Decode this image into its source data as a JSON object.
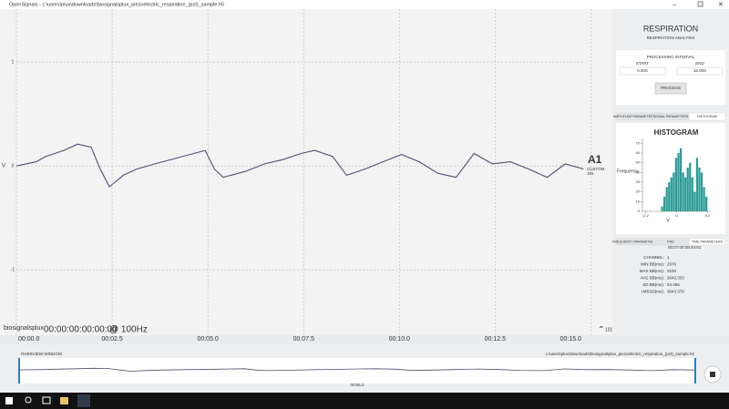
{
  "window": {
    "title": "OpenSignals - c:\\users\\plux\\downloads\\biosignalsplux_piezoelectric_respiration_(pzt)_sample.h5"
  },
  "signal_plot": {
    "type": "line",
    "y_label": "V",
    "color": "#4d5170",
    "x": [
      0,
      0.52,
      0.76,
      1.24,
      1.6,
      1.95,
      2.19,
      2.43,
      2.79,
      3.14,
      3.62,
      4.33,
      4.93,
      5.17,
      5.4,
      6.0,
      6.48,
      6.95,
      7.43,
      7.79,
      8.26,
      8.62,
      9.1,
      9.57,
      10.05,
      10.52,
      11.0,
      11.48,
      11.95,
      12.43,
      12.9,
      13.38,
      13.86,
      14.33,
      14.81
    ],
    "values": [
      0,
      0.04,
      0.09,
      0.15,
      0.21,
      0.18,
      -0.03,
      -0.2,
      -0.09,
      -0.03,
      0.02,
      0.09,
      0.15,
      -0.03,
      -0.11,
      -0.05,
      0.02,
      0.06,
      0.12,
      0.15,
      0.09,
      -0.09,
      -0.03,
      0.04,
      0.11,
      0.04,
      -0.07,
      -0.11,
      0.12,
      0.02,
      0.04,
      -0.03,
      -0.11,
      0.02,
      -0.03
    ],
    "xlim": [
      0,
      14.8
    ],
    "ylim": [
      -1.63,
      1.51
    ],
    "yticks": [
      -1,
      0,
      1
    ],
    "xticks": [
      {
        "value": 0,
        "label": "00:00.0"
      },
      {
        "value": 2.5,
        "label": "00:02.5"
      },
      {
        "value": 5,
        "label": "00:05.0"
      },
      {
        "value": 7.5,
        "label": "00:07.5"
      },
      {
        "value": 10,
        "label": "00:10.0"
      },
      {
        "value": 12.5,
        "label": "00:12.5"
      },
      {
        "value": 15,
        "label": "00:15.0"
      }
    ],
    "grid": true
  },
  "channel": {
    "name": "A1",
    "mode": "CUSTOM",
    "resolution": "195"
  },
  "footer": {
    "logo": "biosignalsplux",
    "time": "00:00:00:00:00:00",
    "rate": "@ 100Hz",
    "zoom": "101"
  },
  "overview": {
    "label": "OVERVIEW WINDOW",
    "file": "c:\\users\\plux\\downloads\\biosignalsplux_piezoelectric_respiration_(pzt)_sample.h5",
    "time": "00:05.0"
  },
  "sidebar": {
    "title": "RESPIRATION",
    "subtitle": "RESPIRATION ANALYSIS",
    "interval": {
      "title": "PROCESSING INTERVAL",
      "start_label": "START",
      "end_label": "END",
      "start": "0.00S",
      "end": "15.00S",
      "button": "PROCESS"
    },
    "tabs_top": [
      "AMPLITUDE PARAMETERS",
      "SIGNAL PARAMETERS",
      "HISTOGRAM"
    ],
    "tabs_bottom": [
      "FREQUENCY PARAMETERS",
      "PSD",
      "TIME PARAMETERS"
    ],
    "time_header": "00:07:00:38:40:61",
    "params": [
      [
        "CHANNEL:",
        "1"
      ],
      [
        "MIN BB(ms):",
        "2970"
      ],
      [
        "MAX BB(ms):",
        "3100"
      ],
      [
        "AVG BB(ms):",
        "3043.333"
      ],
      [
        "SD BB(ms):",
        "54.365"
      ],
      [
        "rMSSD(ms):",
        "3043.378"
      ]
    ]
  },
  "histogram": {
    "type": "histogram",
    "title": "HISTOGRAM",
    "y_label": "Frequency",
    "x_label": "V",
    "color": "#2e9c98",
    "bins": [
      -0.1,
      -0.085,
      -0.07,
      -0.055,
      -0.04,
      -0.025,
      -0.01,
      0.005,
      0.02,
      0.035,
      0.05,
      0.065,
      0.08,
      0.095,
      0.11,
      0.125,
      0.14,
      0.155,
      0.17,
      0.185,
      0.2
    ],
    "counts": [
      5,
      15,
      25,
      30,
      35,
      40,
      55,
      60,
      65,
      40,
      35,
      45,
      50,
      35,
      20,
      55,
      45,
      40,
      25,
      15
    ],
    "xlim": [
      -0.22,
      0.22
    ],
    "ylim": [
      0,
      75
    ],
    "yticks": [
      0,
      10,
      20,
      30,
      40,
      50,
      60,
      70
    ],
    "xticks": [
      -0.2,
      0,
      0.2
    ]
  }
}
